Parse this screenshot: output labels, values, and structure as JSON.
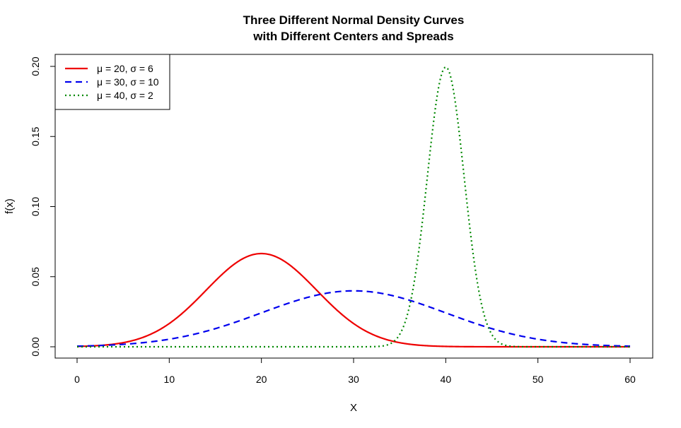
{
  "chart_data": {
    "type": "line",
    "title": [
      "Three Different Normal Density Curves",
      "with Different Centers and Spreads"
    ],
    "xlabel": "X",
    "ylabel": "f(x)",
    "xlim": [
      0,
      60
    ],
    "ylim": [
      0,
      0.2
    ],
    "x_ticks": [
      0,
      10,
      20,
      30,
      40,
      50,
      60
    ],
    "y_ticks": [
      0.0,
      0.05,
      0.1,
      0.15,
      0.2
    ],
    "x_tick_labels": [
      "0",
      "10",
      "20",
      "30",
      "40",
      "50",
      "60"
    ],
    "y_tick_labels": [
      "0.00",
      "0.05",
      "0.10",
      "0.15",
      "0.20"
    ],
    "grid": false,
    "legend_position": "top-left",
    "series": [
      {
        "name": "μ = 20, σ = 6",
        "mu": 20,
        "sigma": 6,
        "color": "#ee0000",
        "style": "solid"
      },
      {
        "name": "μ = 30, σ = 10",
        "mu": 30,
        "sigma": 10,
        "color": "#0000ee",
        "style": "dashed"
      },
      {
        "name": "μ = 40, σ = 2",
        "mu": 40,
        "sigma": 2,
        "color": "#008800",
        "style": "dotted"
      }
    ]
  }
}
